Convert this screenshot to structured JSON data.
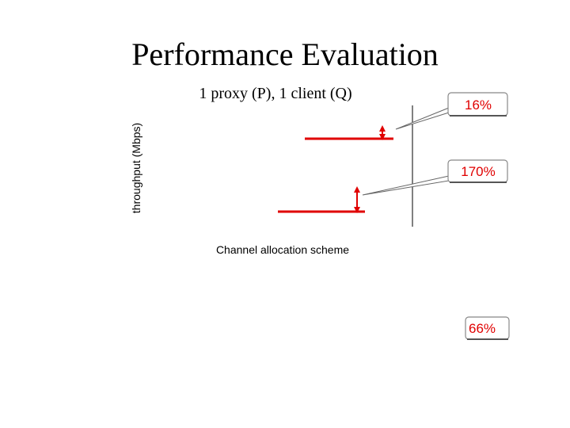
{
  "title": "Performance Evaluation",
  "chart": {
    "subtitle": "1 proxy (P), 1 client (Q)",
    "y_label": "throughput (Mbps)",
    "x_label": "Channel allocation scheme"
  },
  "callouts": [
    "16%",
    "170%",
    "66%"
  ]
}
